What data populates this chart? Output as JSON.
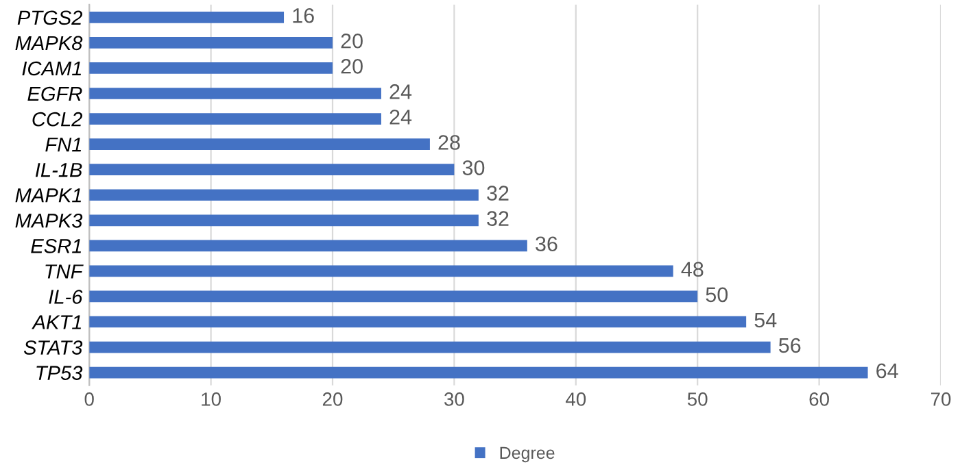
{
  "chart_data": {
    "type": "bar",
    "orientation": "horizontal",
    "categories": [
      "PTGS2",
      "MAPK8",
      "ICAM1",
      "EGFR",
      "CCL2",
      "FN1",
      "IL-1B",
      "MAPK1",
      "MAPK3",
      "ESR1",
      "TNF",
      "IL-6",
      "AKT1",
      "STAT3",
      "TP53"
    ],
    "series": [
      {
        "name": "Degree",
        "color": "#4472c4",
        "values": [
          16,
          20,
          20,
          24,
          24,
          28,
          30,
          32,
          32,
          36,
          48,
          50,
          54,
          56,
          64
        ]
      }
    ],
    "xlim": [
      0,
      70
    ],
    "xticks": [
      0,
      10,
      20,
      30,
      40,
      50,
      60,
      70
    ],
    "grid": "x",
    "legend": "bottom",
    "data_labels": true
  }
}
